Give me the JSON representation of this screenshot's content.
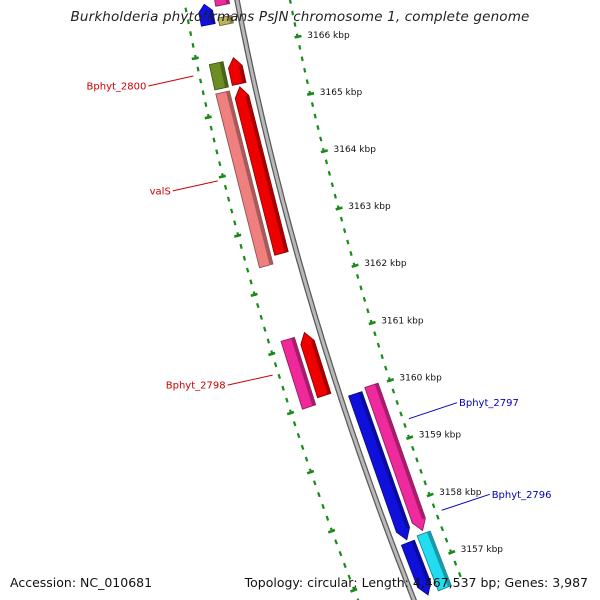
{
  "title": "Burkholderia phytofirmans PsJN chromosome 1, complete genome",
  "footer": {
    "accession": "Accession: NC_010681",
    "stats": "Topology: circular; Length: 4,467,537 bp; Genes: 3,987"
  },
  "colors": {
    "background": "#ffffff",
    "backbone": "#8a8a8a",
    "tick": "#1a8a1a",
    "label_minus": "#cc0000",
    "label_plus": "#0000bb",
    "title_text": "#222222"
  },
  "ticks": [
    {
      "kb": 3166,
      "label": "3166 kbp"
    },
    {
      "kb": 3165,
      "label": "3165 kbp"
    },
    {
      "kb": 3164,
      "label": "3164 kbp"
    },
    {
      "kb": 3163,
      "label": "3163 kbp"
    },
    {
      "kb": 3162,
      "label": "3162 kbp"
    },
    {
      "kb": 3161,
      "label": "3161 kbp"
    },
    {
      "kb": 3160,
      "label": "3160 kbp"
    },
    {
      "kb": 3159,
      "label": "3159 kbp"
    },
    {
      "kb": 3158,
      "label": "3158 kbp"
    },
    {
      "kb": 3157,
      "label": "3157 kbp"
    }
  ],
  "features": [
    {
      "name": "top-outer-blue-gene",
      "strand": "minus",
      "lane": "outer",
      "start": 3166.85,
      "end": 3166.5,
      "color": "#1010ee",
      "arrow": true
    },
    {
      "name": "top-outer-magenta-gene",
      "strand": "minus",
      "lane": "inner",
      "start": 3167.0,
      "end": 3166.78,
      "color": "#ee2a9c",
      "arrow": false
    },
    {
      "name": "top-tan-gene",
      "strand": "minus",
      "lane": "inner",
      "start": 3166.58,
      "end": 3166.45,
      "color": "#bdb35c",
      "arrow": false
    },
    {
      "name": "olive-gene",
      "strand": "minus",
      "lane": "outer",
      "start": 3165.85,
      "end": 3165.42,
      "color": "#6b8e23",
      "arrow": false
    },
    {
      "name": "red-gene-1",
      "strand": "minus",
      "lane": "inner",
      "start": 3165.88,
      "end": 3165.43,
      "color": "#ee0000",
      "arrow": true
    },
    {
      "name": "pink-gene",
      "strand": "minus",
      "lane": "outer",
      "start": 3165.35,
      "end": 3162.4,
      "color": "#f08080",
      "arrow": false
    },
    {
      "name": "red-gene-2",
      "strand": "minus",
      "lane": "inner",
      "start": 3165.38,
      "end": 3162.53,
      "color": "#ee0000",
      "arrow": true
    },
    {
      "name": "hotpink-gene",
      "strand": "minus",
      "lane": "outer",
      "start": 3161.15,
      "end": 3160.0,
      "color": "#f0289a",
      "arrow": false
    },
    {
      "name": "red-gene-3",
      "strand": "minus",
      "lane": "inner",
      "start": 3161.18,
      "end": 3160.1,
      "color": "#ee0000",
      "arrow": true
    },
    {
      "name": "blue-gene-plus-1",
      "strand": "plus",
      "lane": "inner",
      "start": 3159.97,
      "end": 3157.45,
      "color": "#1010dd",
      "arrow": true
    },
    {
      "name": "magenta-gene-plus",
      "strand": "plus",
      "lane": "outer",
      "start": 3160.02,
      "end": 3157.5,
      "color": "#ee2a9c",
      "arrow": true
    },
    {
      "name": "blue-gene-plus-2",
      "strand": "plus",
      "lane": "inner",
      "start": 3157.4,
      "end": 3156.5,
      "color": "#1010dd",
      "arrow": true
    },
    {
      "name": "cyan-gene",
      "strand": "plus",
      "lane": "outer",
      "start": 3157.45,
      "end": 3156.5,
      "color": "#22ddf2",
      "arrow": false
    }
  ],
  "gene_labels": [
    {
      "text": "Bphyt_2800",
      "strand": "minus",
      "kb": 3165.72,
      "color": "#cc0000"
    },
    {
      "text": "valS",
      "strand": "minus",
      "kb": 3163.95,
      "color": "#cc0000"
    },
    {
      "text": "Bphyt_2798",
      "strand": "minus",
      "kb": 3160.67,
      "color": "#cc0000"
    },
    {
      "text": "Bphyt_2797",
      "strand": "plus",
      "kb": 3159.3,
      "color": "#0000bb"
    },
    {
      "text": "Bphyt_2796",
      "strand": "plus",
      "kb": 3157.7,
      "color": "#0000bb"
    }
  ]
}
